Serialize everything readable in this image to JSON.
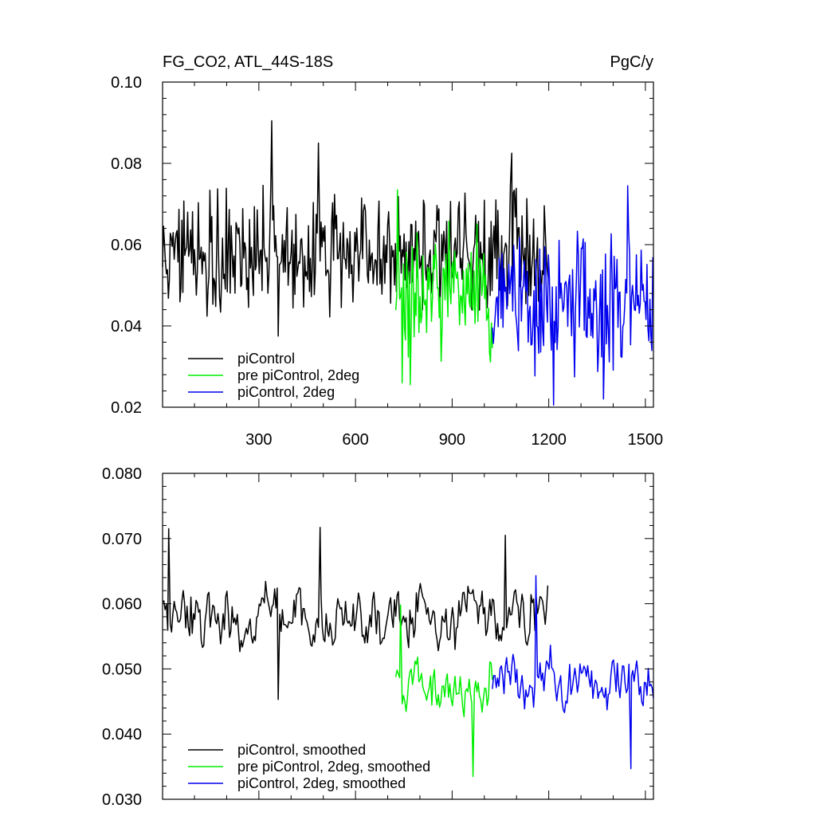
{
  "header": {
    "left_title": "FG_CO2, ATL_44S-18S",
    "right_title": "PgC/y"
  },
  "colors": {
    "piControl": "#000000",
    "pre_piControl_2deg": "#00ee00",
    "piControl_2deg": "#0000ee"
  },
  "chart_data": [
    {
      "type": "line",
      "title": "FG_CO2, ATL_44S-18S",
      "units": "PgC/y",
      "xlim": [
        1,
        1525
      ],
      "ylim": [
        0.02,
        0.1
      ],
      "x_ticks": [
        300,
        600,
        900,
        1200,
        1500
      ],
      "x_tick_labels": [
        "300",
        "600",
        "900",
        "1200",
        "1500"
      ],
      "y_ticks": [
        0.02,
        0.04,
        0.06,
        0.08,
        0.1
      ],
      "y_tick_labels": [
        "0.02",
        "0.04",
        "0.06",
        "0.08",
        "0.10"
      ],
      "legend_position": "bottom-left",
      "legend": [
        "piControl",
        "pre piControl, 2deg",
        "piControl, 2deg"
      ],
      "series": [
        {
          "name": "piControl",
          "color": "#000000",
          "x_range": [
            1,
            1200
          ],
          "mean": 0.058,
          "amplitude": 0.011,
          "notable_points": [
            {
              "x": 340,
              "y": 0.0905
            },
            {
              "x": 485,
              "y": 0.085
            },
            {
              "x": 360,
              "y": 0.0375
            },
            {
              "x": 1085,
              "y": 0.0825
            }
          ]
        },
        {
          "name": "pre piControl, 2deg",
          "color": "#00ee00",
          "x_range": [
            725,
            1025
          ],
          "mean": 0.049,
          "amplitude": 0.012,
          "notable_points": [
            {
              "x": 730,
              "y": 0.0735
            },
            {
              "x": 745,
              "y": 0.026
            },
            {
              "x": 770,
              "y": 0.0255
            }
          ]
        },
        {
          "name": "piControl, 2deg",
          "color": "#0000ee",
          "x_range": [
            1025,
            1525
          ],
          "mean": 0.046,
          "amplitude": 0.012,
          "notable_points": [
            {
              "x": 1215,
              "y": 0.0205
            },
            {
              "x": 1445,
              "y": 0.0745
            },
            {
              "x": 1370,
              "y": 0.022
            }
          ]
        }
      ]
    },
    {
      "type": "line",
      "xlim": [
        1,
        1525
      ],
      "ylim": [
        0.03,
        0.08
      ],
      "x_ticks": [
        300,
        600,
        900,
        1200,
        1500
      ],
      "y_ticks": [
        0.03,
        0.04,
        0.05,
        0.06,
        0.07,
        0.08
      ],
      "y_tick_labels": [
        "0.030",
        "0.040",
        "0.050",
        "0.060",
        "0.070",
        "0.080"
      ],
      "legend_position": "bottom-left",
      "legend": [
        "piControl, smoothed",
        "pre piControl, 2deg, smoothed",
        "piControl, 2deg, smoothed"
      ],
      "series": [
        {
          "name": "piControl, smoothed",
          "color": "#000000",
          "x_range": [
            1,
            1200
          ],
          "mean": 0.058,
          "amplitude": 0.0045,
          "notable_points": [
            {
              "x": 20,
              "y": 0.0715
            },
            {
              "x": 490,
              "y": 0.0717
            },
            {
              "x": 360,
              "y": 0.0453
            },
            {
              "x": 1065,
              "y": 0.0705
            }
          ]
        },
        {
          "name": "pre piControl, 2deg, smoothed",
          "color": "#00ee00",
          "x_range": [
            725,
            1025
          ],
          "mean": 0.048,
          "amplitude": 0.004,
          "notable_points": [
            {
              "x": 740,
              "y": 0.0598
            },
            {
              "x": 965,
              "y": 0.0335
            }
          ]
        },
        {
          "name": "piControl, 2deg, smoothed",
          "color": "#0000ee",
          "x_range": [
            1025,
            1525
          ],
          "mean": 0.0475,
          "amplitude": 0.004,
          "notable_points": [
            {
              "x": 1160,
              "y": 0.0643
            },
            {
              "x": 1455,
              "y": 0.0347
            },
            {
              "x": 1525,
              "y": 0.0455
            }
          ]
        }
      ]
    }
  ]
}
